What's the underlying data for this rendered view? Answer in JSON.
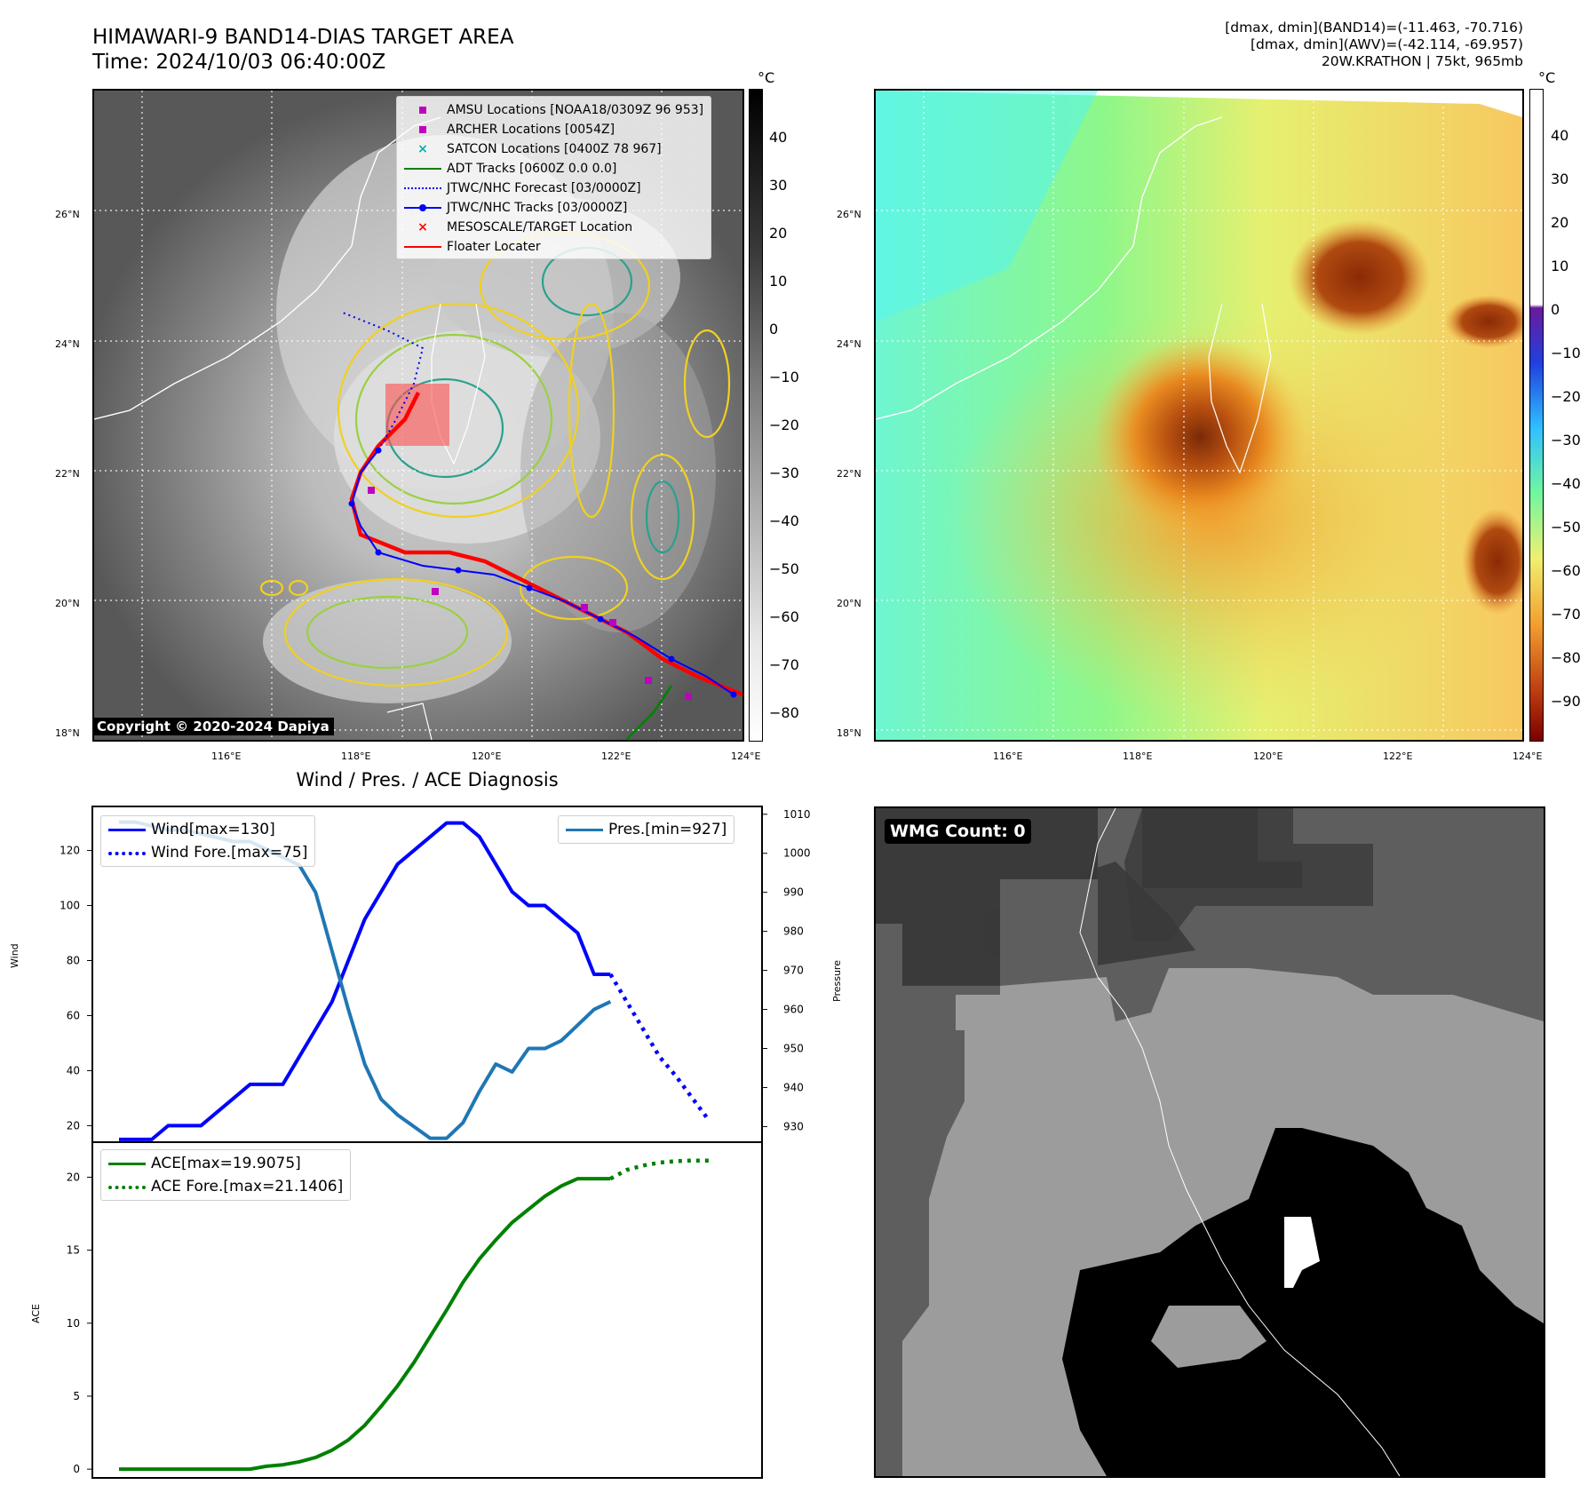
{
  "title": {
    "line1": "HIMAWARI-9 BAND14-DIAS TARGET AREA",
    "line2": "Time: 2024/10/03 06:40:00Z"
  },
  "top_right_info": {
    "line1": "[dmax, dmin](BAND14)=(-11.463, -70.716)",
    "line2": "[dmax, dmin](AWV)=(-42.114, -69.957)",
    "line3": "20W.KRATHON | 75kt, 965mb"
  },
  "map_ticks": {
    "lat": [
      "26°N",
      "24°N",
      "22°N",
      "20°N",
      "18°N"
    ],
    "lon": [
      "116°E",
      "118°E",
      "120°E",
      "122°E",
      "124°E"
    ]
  },
  "colorbar_left": {
    "unit": "°C",
    "ticks": [
      "40",
      "30",
      "20",
      "10",
      "0",
      "−10",
      "−20",
      "−30",
      "−40",
      "−50",
      "−60",
      "−70",
      "−80"
    ]
  },
  "colorbar_right": {
    "unit": "°C",
    "ticks": [
      "40",
      "30",
      "20",
      "10",
      "0",
      "−10",
      "−20",
      "−30",
      "−40",
      "−50",
      "−60",
      "−70",
      "−80",
      "−90"
    ]
  },
  "map_legend": [
    {
      "label": "AMSU Locations [NOAA18/0309Z 96 953]",
      "color": "#c000c0",
      "kind": "square"
    },
    {
      "label": "ARCHER Locations [0054Z]",
      "color": "#c000c0",
      "kind": "square"
    },
    {
      "label": "SATCON Locations [0400Z 78 967]",
      "color": "#00b0b0",
      "kind": "x"
    },
    {
      "label": "ADT Tracks [0600Z 0.0 0.0]",
      "color": "#008000",
      "kind": "line"
    },
    {
      "label": "JTWC/NHC Forecast [03/0000Z]",
      "color": "#0000ff",
      "kind": "dotted"
    },
    {
      "label": "JTWC/NHC Tracks [03/0000Z]",
      "color": "#0000ff",
      "kind": "linedot"
    },
    {
      "label": "MESOSCALE/TARGET Location",
      "color": "#ff0000",
      "kind": "x"
    },
    {
      "label": "Floater Locater",
      "color": "#ff0000",
      "kind": "line"
    }
  ],
  "copyright": "Copyright © 2020-2024 Dapiya",
  "wmg": "WMG Count: 0",
  "chart_data": [
    {
      "type": "line",
      "title": "Wind / Pres. / ACE Diagnosis",
      "xlabel": "",
      "ylabel": "Wind",
      "ylabel2": "Pressure",
      "x": [
        0,
        1,
        2,
        3,
        4,
        5,
        6,
        7,
        8,
        9,
        10,
        11,
        12,
        13,
        14,
        15,
        16,
        17,
        18,
        19,
        20,
        21,
        22,
        23,
        24,
        25,
        26,
        27,
        28,
        29,
        30,
        31,
        32,
        33,
        34,
        35,
        36
      ],
      "ylim": [
        14,
        136
      ],
      "ylim2": [
        926,
        1012
      ],
      "yticks": [
        20,
        40,
        60,
        80,
        100,
        120
      ],
      "yticks2": [
        930,
        940,
        950,
        960,
        970,
        980,
        990,
        1000,
        1010
      ],
      "legend": [
        {
          "label": "Wind[max=130]",
          "style": "solid",
          "color": "#0000ff"
        },
        {
          "label": "Wind Fore.[max=75]",
          "style": "dotted",
          "color": "#0000ff"
        }
      ],
      "legend2": [
        {
          "label": "Pres.[min=927]",
          "style": "solid",
          "color": "#1f77b4"
        }
      ],
      "series": [
        {
          "name": "Wind",
          "axis": "left",
          "style": "solid",
          "color": "#0000ff",
          "x": [
            0,
            1,
            2,
            3,
            4,
            5,
            6,
            7,
            8,
            9,
            10,
            11,
            12,
            13,
            14,
            15,
            16,
            17,
            18,
            19,
            20,
            21,
            22,
            23,
            24,
            25,
            26,
            27,
            28,
            29,
            30
          ],
          "values": [
            15,
            15,
            15,
            20,
            20,
            20,
            25,
            30,
            35,
            35,
            35,
            45,
            55,
            65,
            80,
            95,
            105,
            115,
            120,
            125,
            130,
            130,
            125,
            115,
            105,
            100,
            100,
            95,
            90,
            75,
            75
          ]
        },
        {
          "name": "Wind Fore.",
          "axis": "left",
          "style": "dotted",
          "color": "#0000ff",
          "x": [
            30,
            31,
            32,
            33,
            34,
            35,
            36
          ],
          "values": [
            75,
            65,
            55,
            45,
            38,
            30,
            22
          ]
        },
        {
          "name": "Pres.",
          "axis": "right",
          "style": "solid",
          "color": "#1f77b4",
          "x": [
            0,
            1,
            2,
            3,
            4,
            5,
            6,
            7,
            8,
            9,
            10,
            11,
            12,
            13,
            14,
            15,
            16,
            17,
            18,
            19,
            20,
            21,
            22,
            23,
            24,
            25,
            26,
            27,
            28,
            29,
            30
          ],
          "values": [
            1008,
            1008,
            1007,
            1006,
            1006,
            1005,
            1004,
            1003,
            1003,
            1001,
            999,
            997,
            990,
            975,
            960,
            946,
            937,
            933,
            930,
            927,
            927,
            931,
            939,
            946,
            944,
            950,
            950,
            952,
            956,
            960,
            962
          ]
        }
      ]
    },
    {
      "type": "line",
      "title": "",
      "xlabel": "",
      "ylabel": "ACE",
      "x": [
        0,
        1,
        2,
        3,
        4,
        5,
        6,
        7,
        8,
        9,
        10,
        11,
        12,
        13,
        14,
        15,
        16,
        17,
        18,
        19,
        20,
        21,
        22,
        23,
        24,
        25,
        26,
        27,
        28,
        29,
        30,
        31,
        32,
        33,
        34,
        35,
        36
      ],
      "ylim": [
        -0.6,
        22.4
      ],
      "yticks": [
        0,
        5,
        10,
        15,
        20
      ],
      "legend": [
        {
          "label": "ACE[max=19.9075]",
          "style": "solid",
          "color": "#008000"
        },
        {
          "label": "ACE Fore.[max=21.1406]",
          "style": "dotted",
          "color": "#008000"
        }
      ],
      "series": [
        {
          "name": "ACE",
          "style": "solid",
          "color": "#008000",
          "x": [
            0,
            1,
            2,
            3,
            4,
            5,
            6,
            7,
            8,
            9,
            10,
            11,
            12,
            13,
            14,
            15,
            16,
            17,
            18,
            19,
            20,
            21,
            22,
            23,
            24,
            25,
            26,
            27,
            28,
            29,
            30
          ],
          "values": [
            0,
            0,
            0,
            0,
            0,
            0,
            0,
            0,
            0,
            0.2,
            0.3,
            0.5,
            0.8,
            1.3,
            2.0,
            3.0,
            4.3,
            5.7,
            7.3,
            9.1,
            10.9,
            12.8,
            14.4,
            15.7,
            16.9,
            17.8,
            18.7,
            19.4,
            19.9,
            19.9,
            19.9
          ]
        },
        {
          "name": "ACE Fore.",
          "style": "dotted",
          "color": "#008000",
          "x": [
            30,
            31,
            32,
            33,
            34,
            35,
            36
          ],
          "values": [
            19.9,
            20.5,
            20.8,
            21.0,
            21.1,
            21.14,
            21.1406
          ]
        }
      ]
    }
  ]
}
